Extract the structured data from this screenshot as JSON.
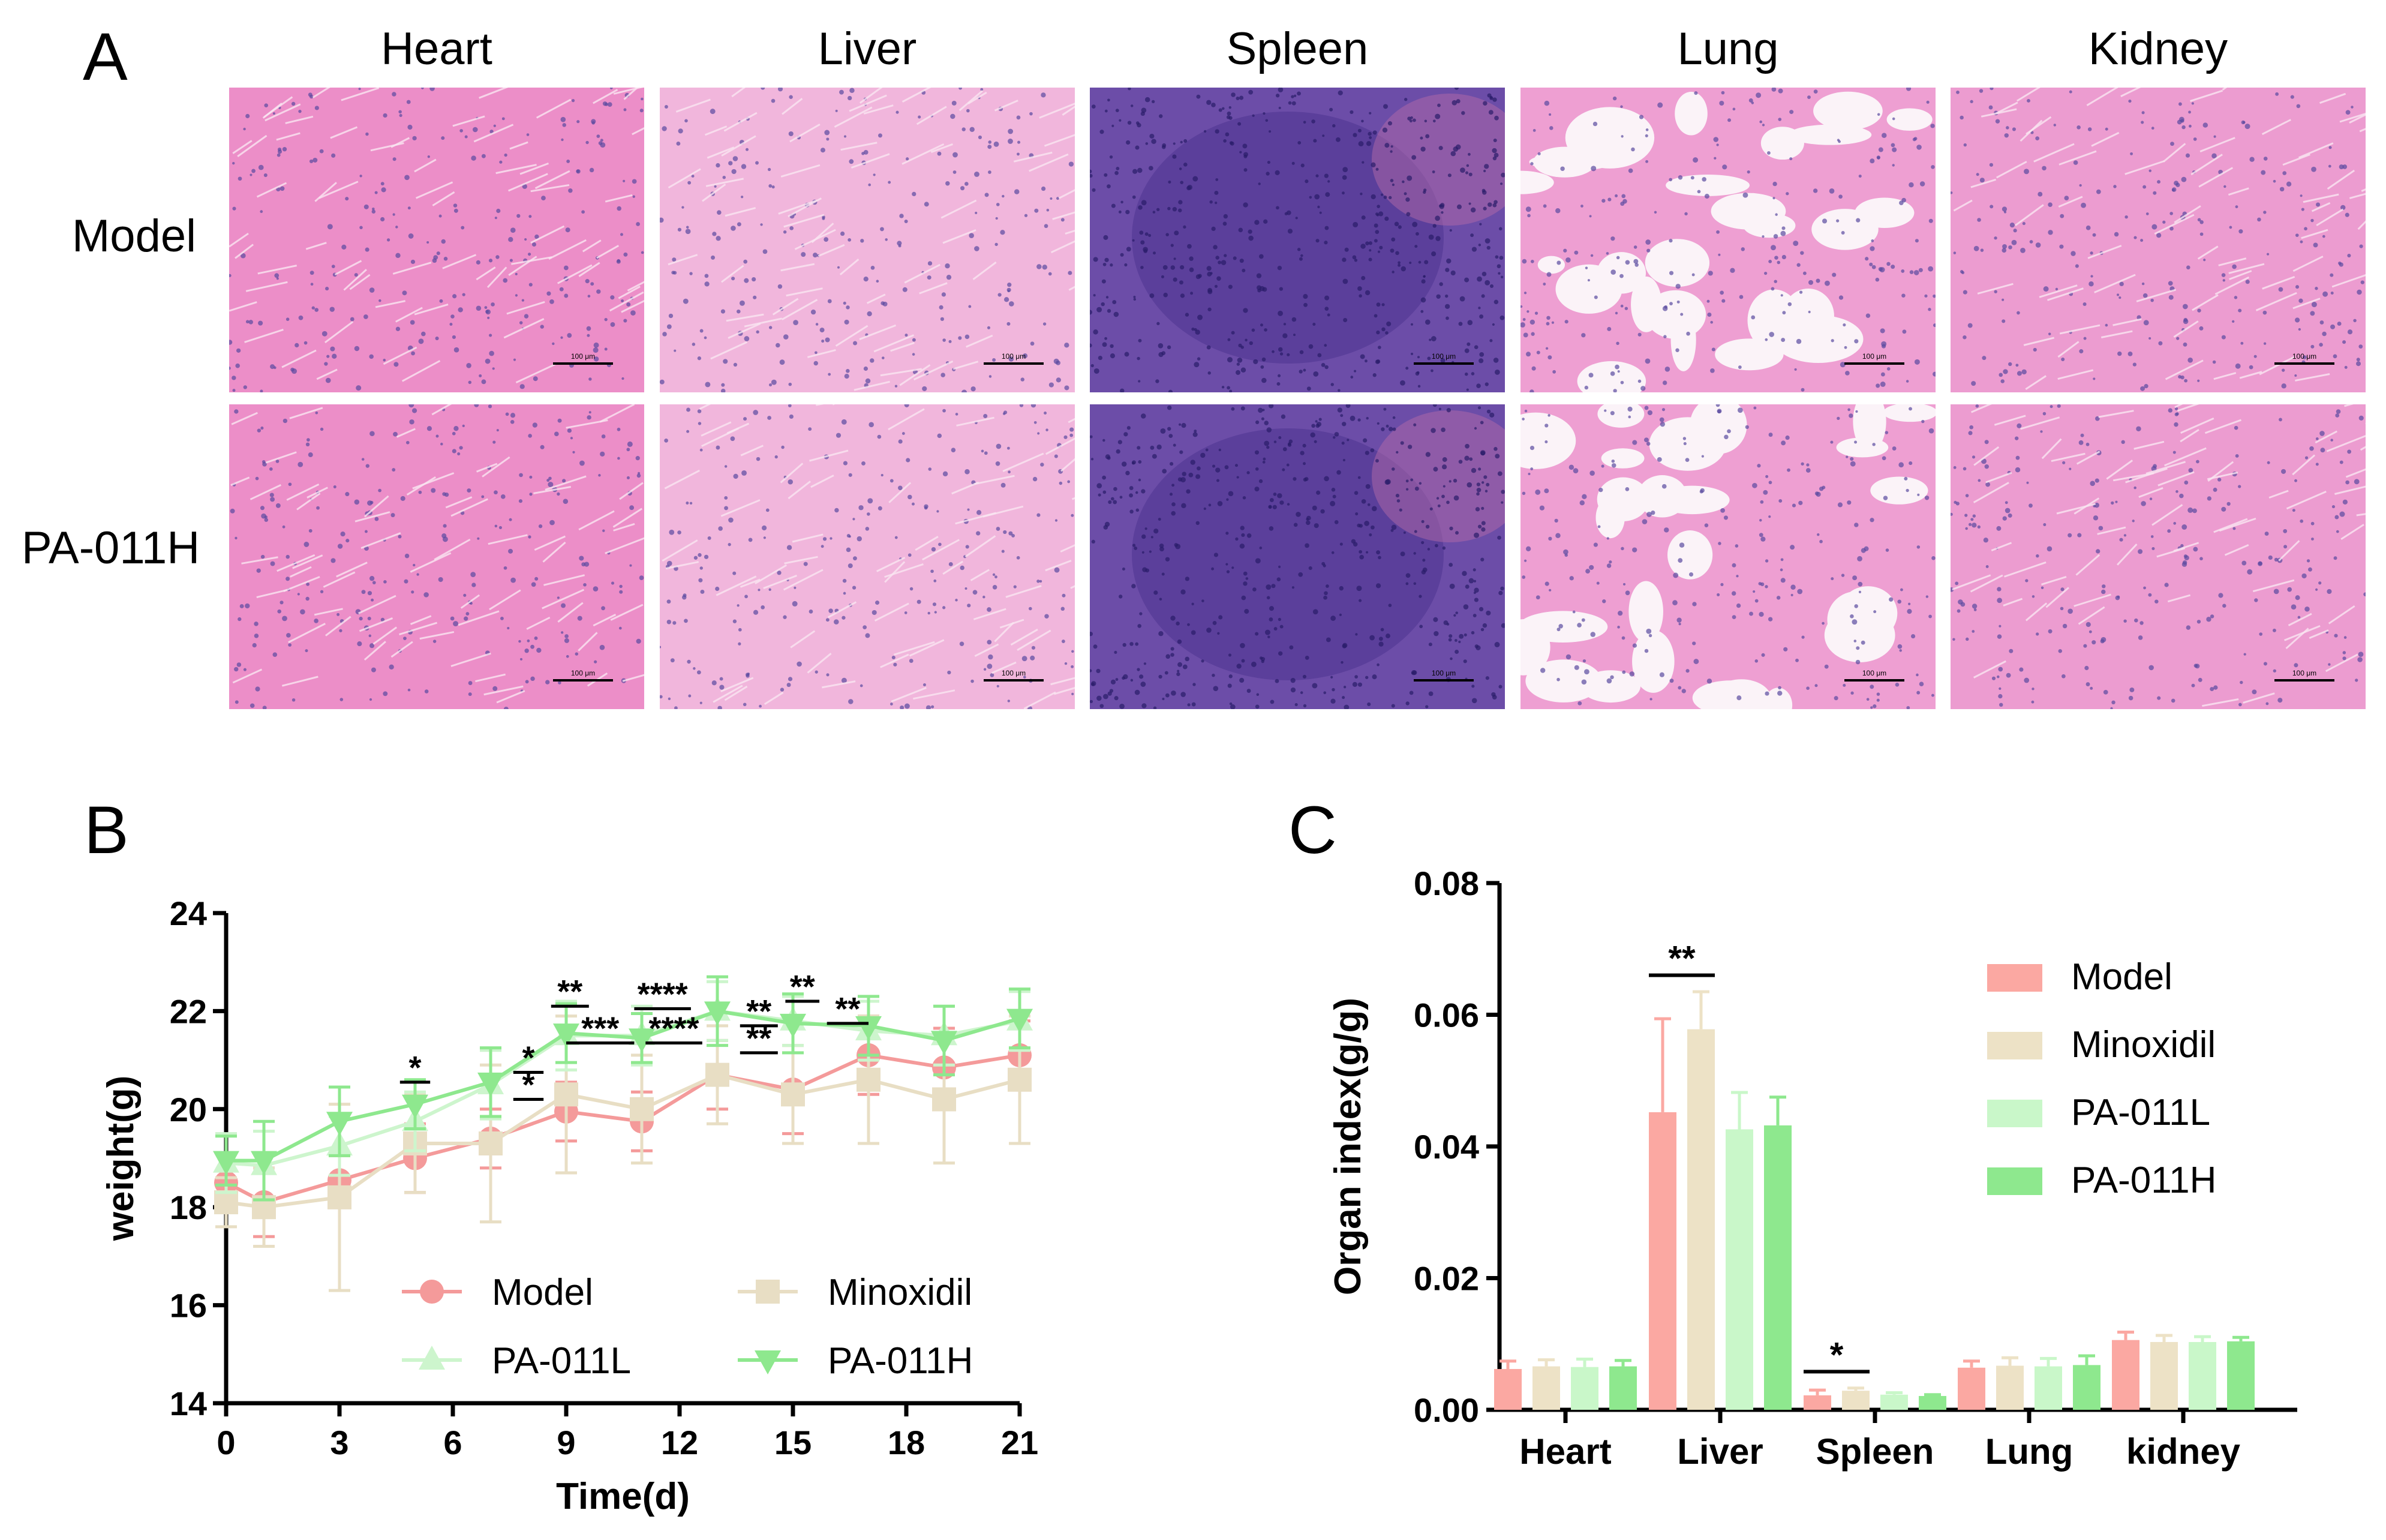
{
  "panels": {
    "a": "A",
    "b": "B",
    "c": "C"
  },
  "histology": {
    "columns": [
      "Heart",
      "Liver",
      "Spleen",
      "Lung",
      "Kidney"
    ],
    "rows": [
      "Model",
      "PA-011H"
    ],
    "scale_bar_label": "100 μm",
    "stain_colors": {
      "heart": "#ec8ec8",
      "liver": "#f1b6dc",
      "spleen": "#6c4da8",
      "lung": "#ee9fd2",
      "kidney": "#ec9cd0"
    }
  },
  "chart_data": [
    {
      "type": "line",
      "panel": "B",
      "xlabel": "Time(d)",
      "ylabel": "weight(g)",
      "xlim": [
        0,
        21
      ],
      "ylim": [
        14,
        24
      ],
      "xticks": [
        0,
        3,
        6,
        9,
        12,
        15,
        18,
        21
      ],
      "yticks": [
        14,
        16,
        18,
        20,
        22,
        24
      ],
      "legend": "bottom, two columns inside plot",
      "series": [
        {
          "name": "Model",
          "color": "#f49a9a",
          "marker": "circle",
          "x": [
            0,
            1,
            3,
            5,
            7,
            9,
            11,
            13,
            15,
            17,
            19,
            21
          ],
          "y": [
            18.5,
            18.1,
            18.55,
            19.0,
            19.4,
            19.95,
            19.75,
            20.7,
            20.4,
            21.1,
            20.85,
            21.1
          ],
          "err": [
            0.6,
            0.7,
            0.5,
            0.7,
            0.6,
            0.6,
            0.6,
            0.7,
            0.9,
            0.8,
            0.8,
            0.7
          ]
        },
        {
          "name": "Minoxidil",
          "color": "#e8dec4",
          "marker": "square",
          "x": [
            0,
            1,
            3,
            5,
            7,
            9,
            11,
            13,
            15,
            17,
            19,
            21
          ],
          "y": [
            18.1,
            18.0,
            18.2,
            19.3,
            19.3,
            20.3,
            20.0,
            20.7,
            20.3,
            20.6,
            20.2,
            20.6
          ],
          "err": [
            0.5,
            0.8,
            1.9,
            1.0,
            1.6,
            1.6,
            1.1,
            1.0,
            1.0,
            1.3,
            1.3,
            1.3
          ]
        },
        {
          "name": "PA-011L",
          "color": "#cdf5cd",
          "marker": "triangle-up",
          "x": [
            0,
            1,
            3,
            5,
            7,
            9,
            11,
            13,
            15,
            17,
            19,
            21
          ],
          "y": [
            18.9,
            18.85,
            19.25,
            19.75,
            20.5,
            21.5,
            21.5,
            22.0,
            21.8,
            21.6,
            21.5,
            21.8
          ],
          "err": [
            0.6,
            0.7,
            0.6,
            0.6,
            0.7,
            0.7,
            0.6,
            0.6,
            0.5,
            0.6,
            0.6,
            0.6
          ]
        },
        {
          "name": "PA-011H",
          "color": "#8ee88e",
          "marker": "triangle-down",
          "x": [
            0,
            1,
            3,
            5,
            7,
            9,
            11,
            13,
            15,
            17,
            19,
            21
          ],
          "y": [
            18.95,
            18.95,
            19.75,
            20.1,
            20.55,
            21.55,
            21.45,
            22.0,
            21.75,
            21.7,
            21.4,
            21.85
          ],
          "err": [
            0.5,
            0.8,
            0.7,
            0.5,
            0.7,
            0.6,
            0.5,
            0.7,
            0.6,
            0.6,
            0.7,
            0.6
          ]
        }
      ],
      "annotations": [
        {
          "text": "*",
          "x1": 4.6,
          "x2": 5.4,
          "y": 20.55
        },
        {
          "text": "*",
          "x1": 7.6,
          "x2": 8.4,
          "y": 20.75
        },
        {
          "text": "*",
          "x1": 7.6,
          "x2": 8.4,
          "y": 20.2
        },
        {
          "text": "**",
          "x1": 8.6,
          "x2": 9.6,
          "y": 22.1
        },
        {
          "text": "***",
          "x1": 9.0,
          "x2": 10.8,
          "y": 21.35
        },
        {
          "text": "****",
          "x1": 11.1,
          "x2": 12.6,
          "y": 21.35
        },
        {
          "text": "****",
          "x1": 10.8,
          "x2": 12.3,
          "y": 22.05
        },
        {
          "text": "**",
          "x1": 13.6,
          "x2": 14.6,
          "y": 21.7
        },
        {
          "text": "**",
          "x1": 13.6,
          "x2": 14.6,
          "y": 21.15
        },
        {
          "text": "**",
          "x1": 14.8,
          "x2": 15.7,
          "y": 22.2
        },
        {
          "text": "**",
          "x1": 15.9,
          "x2": 17.0,
          "y": 21.75
        }
      ]
    },
    {
      "type": "bar",
      "panel": "C",
      "ylabel": "Organ index(g/g)",
      "xlabel": "",
      "categories": [
        "Heart",
        "Liver",
        "Spleen",
        "Lung",
        "kidney"
      ],
      "ylim": [
        0,
        0.08
      ],
      "yticks": [
        "0.00",
        "0.02",
        "0.04",
        "0.06",
        "0.08"
      ],
      "legend": "top-right",
      "series": [
        {
          "name": "Model",
          "color": "#fba8a2",
          "values": [
            0.0062,
            0.0452,
            0.0022,
            0.0064,
            0.0106
          ],
          "err": [
            0.0012,
            0.0142,
            0.0008,
            0.001,
            0.0012
          ]
        },
        {
          "name": "Minoxidil",
          "color": "#ede2c6",
          "values": [
            0.0066,
            0.0578,
            0.0029,
            0.0067,
            0.0103
          ],
          "err": [
            0.001,
            0.0057,
            0.0004,
            0.0012,
            0.001
          ]
        },
        {
          "name": "PA-011L",
          "color": "#c9f7c9",
          "values": [
            0.0065,
            0.0426,
            0.0023,
            0.0066,
            0.0103
          ],
          "err": [
            0.0012,
            0.0056,
            0.0003,
            0.0012,
            0.0008
          ]
        },
        {
          "name": "PA-011H",
          "color": "#8ee88e",
          "values": [
            0.0066,
            0.0432,
            0.0021,
            0.0068,
            0.0104
          ],
          "err": [
            0.0009,
            0.0043,
            0.0002,
            0.0014,
            0.0006
          ]
        }
      ],
      "annotations": [
        {
          "text": "**",
          "category": 1,
          "from": 0,
          "to": 1,
          "y": 0.066
        },
        {
          "text": "*",
          "category": 2,
          "from": 0,
          "to": 1,
          "y": 0.0058
        }
      ]
    }
  ]
}
